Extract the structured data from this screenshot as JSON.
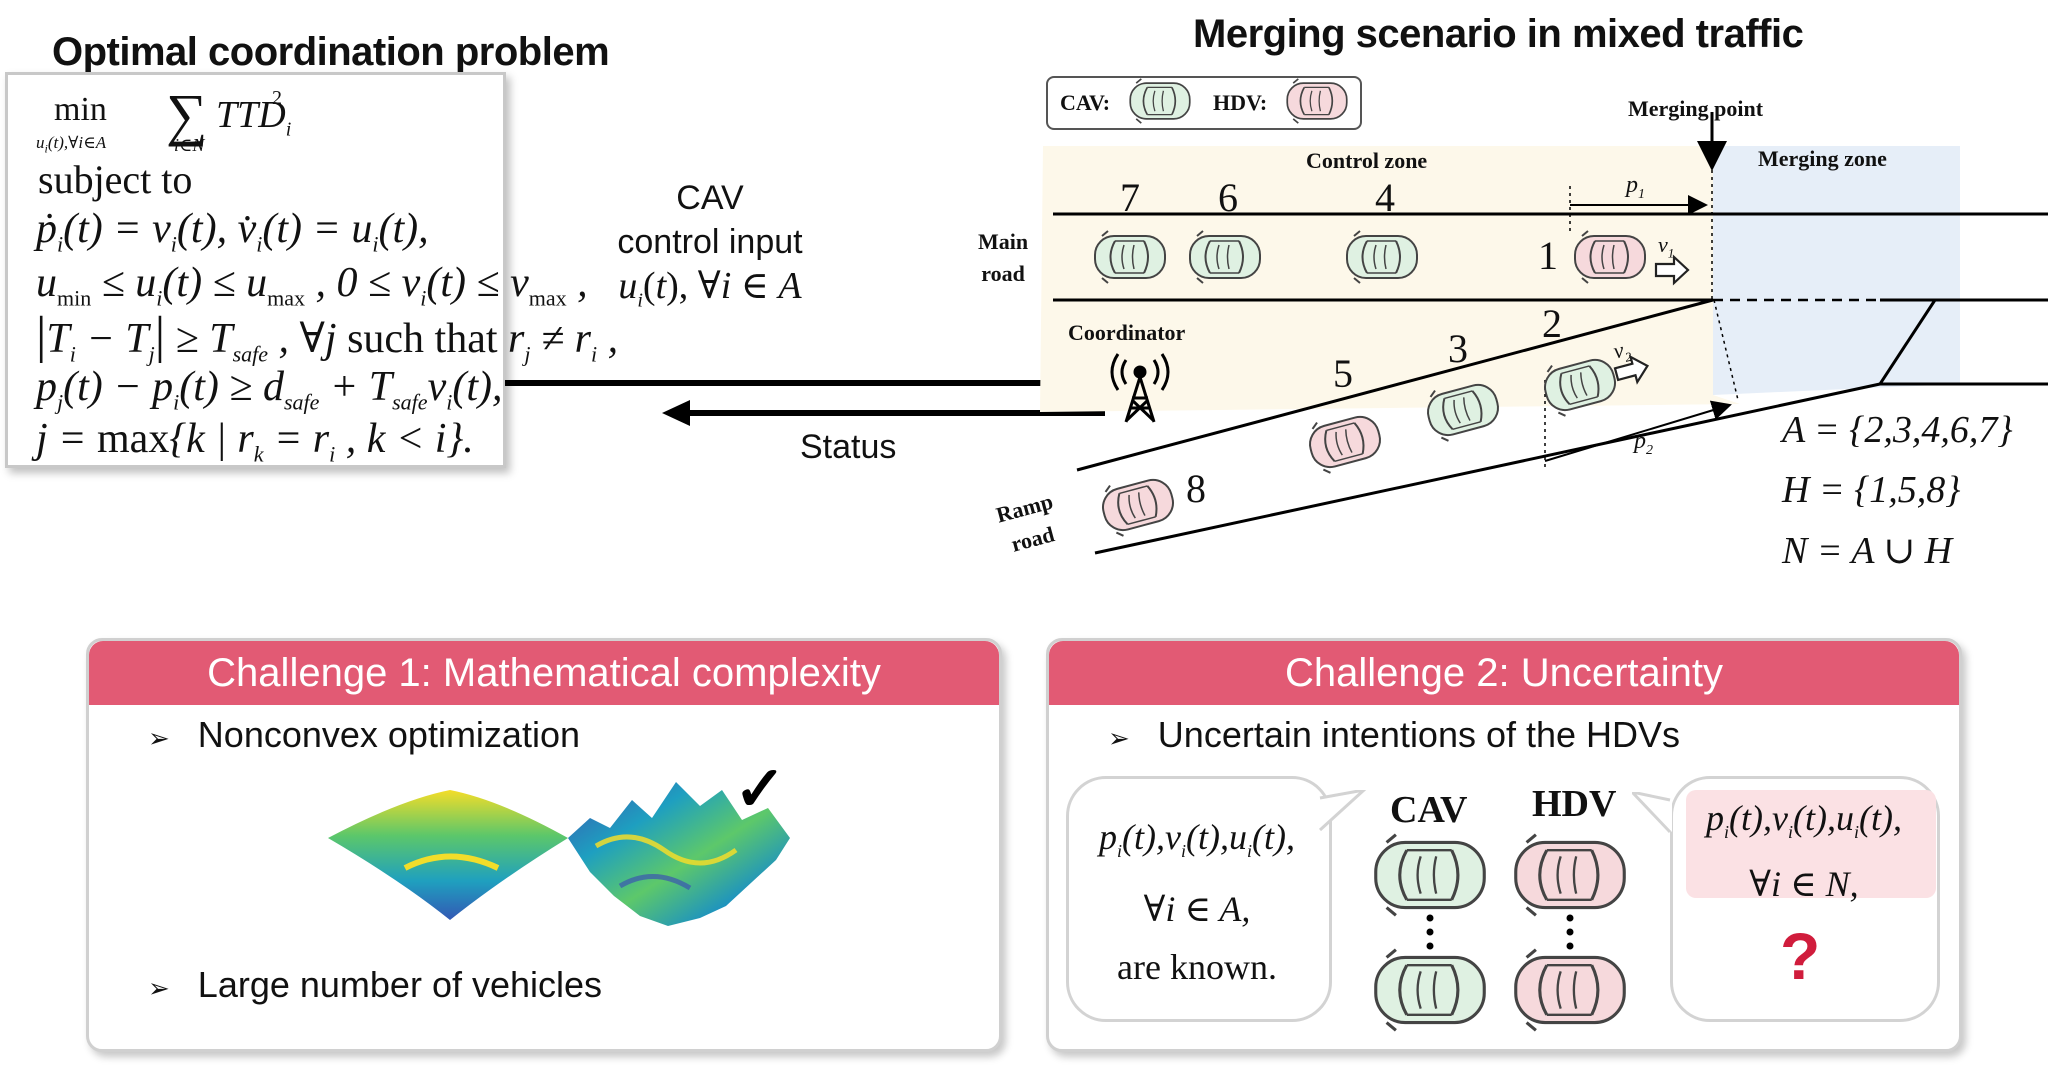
{
  "left_panel": {
    "title": "Optimal coordination problem",
    "objective": "min Σ TTD²",
    "objective_min": "min",
    "objective_sub": "u_i(t), ∀i∈A",
    "objective_sum_sub": "i∈N",
    "objective_term": "TTD",
    "objective_term_sub": "i",
    "objective_term_sup": "2",
    "subject_to": "subject to",
    "constraints": [
      "ṗ_i(t) = v_i(t), v̇_i(t) = u_i(t),",
      "u_min ≤ u_i(t) ≤ u_max , 0 ≤ v_i(t) ≤ v_max ,",
      "|T_i − T_j| ≥ T_safe , ∀j such that r_j ≠ r_i ,",
      "p_j(t) − p_i(t) ≥ d_safe + T_safe v_i(t),",
      "j = max{k | r_k = r_i , k < i}."
    ]
  },
  "middle": {
    "control_line1": "CAV",
    "control_line2": "control input",
    "control_line3": "u_i(t), ∀i ∈ A",
    "status": "Status"
  },
  "right_panel": {
    "title": "Merging scenario in mixed traffic",
    "legend_cav": "CAV:",
    "legend_hdv": "HDV:",
    "merging_point": "Merging point",
    "control_zone": "Control zone",
    "merging_zone": "Merging zone",
    "main_road": "Main\nroad",
    "ramp_road": "Ramp\nroad",
    "coordinator": "Coordinator",
    "vehicle_numbers": [
      "7",
      "6",
      "4",
      "1",
      "5",
      "3",
      "2",
      "8"
    ],
    "p1": "p",
    "p1_sub": "1",
    "p2": "p",
    "p2_sub": "2",
    "v1": "v",
    "v1_sub": "1",
    "v2": "v",
    "v2_sub": "2",
    "set_A": "A = {2,3,4,6,7}",
    "set_H": "H = {1,5,8}",
    "set_N": "N = A ∪ H"
  },
  "challenge1": {
    "header": "Challenge 1: Mathematical complexity",
    "bullet1": "Nonconvex optimization",
    "bullet2": "Large number of vehicles",
    "check": "✓"
  },
  "challenge2": {
    "header": "Challenge 2: Uncertainty",
    "bullet1": "Uncertain intentions of the HDVs",
    "known_line1": "p_i(t), v_i(t), u_i(t),",
    "known_line2": "∀i ∈ A,",
    "known_line3": "are known.",
    "cav_label": "CAV",
    "hdv_label": "HDV",
    "unknown_line1": "p_i(t), v_i(t), u_i(t),",
    "unknown_line2": "∀i ∈ N,",
    "question": "?"
  },
  "colors": {
    "accent": "#e25a74",
    "cav_fill": "#dff1e2",
    "hdv_fill": "#f6d9dc",
    "road_fill": "#fdf8ea",
    "merge_fill": "#e6eef8",
    "question": "#d01c3c",
    "unknown_bg": "#fbe1e4"
  }
}
